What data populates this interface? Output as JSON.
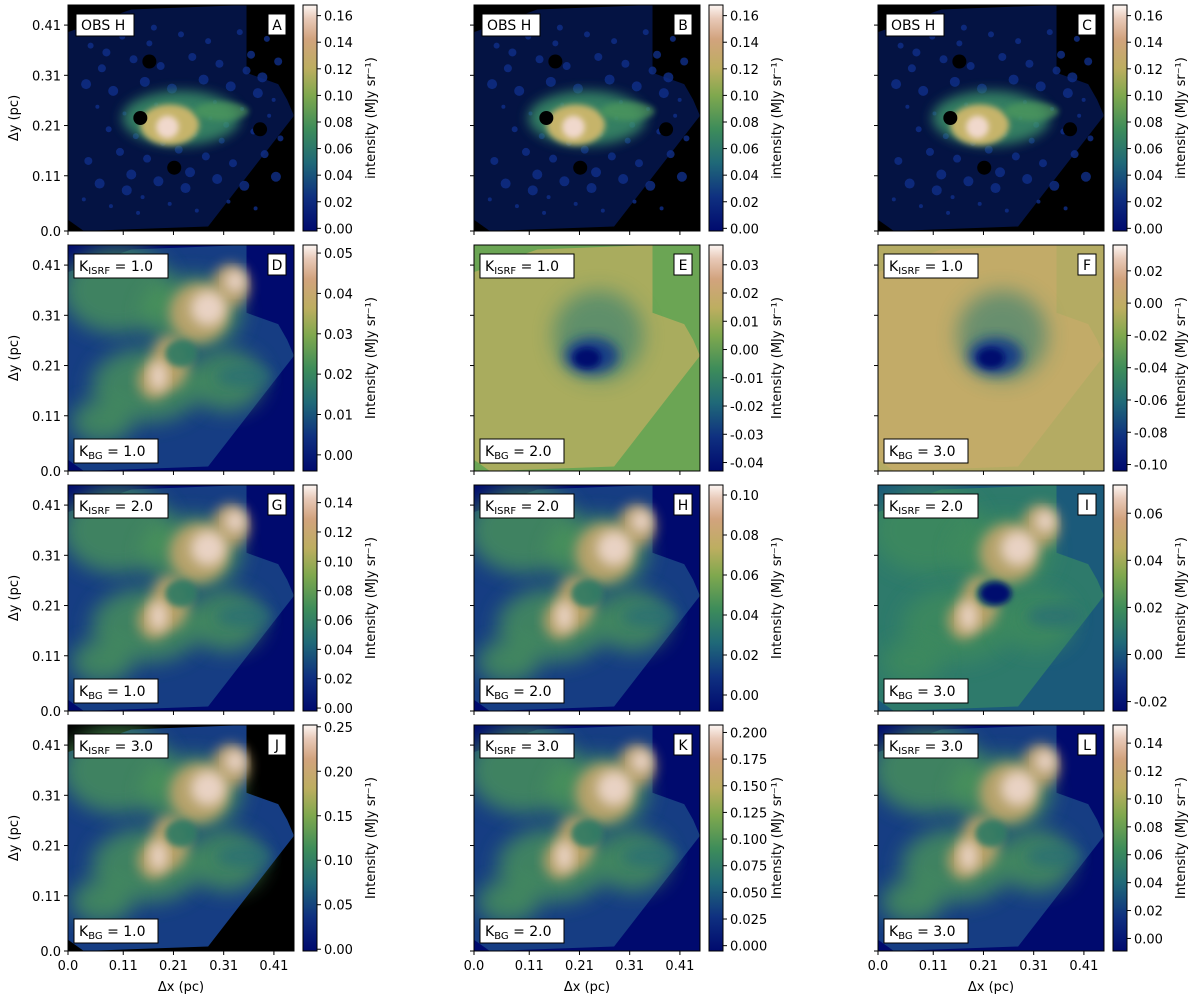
{
  "chart_data": {
    "type": "heatmap",
    "layout": "4x3 grid of image panels with colorbars",
    "shared_axes": {
      "xlabel": "Δx (pc)",
      "ylabel": "Δy (pc)",
      "xticks": [
        "0.0",
        "0.11",
        "0.21",
        "0.31",
        "0.41"
      ],
      "yticks": [
        "0.0",
        "0.11",
        "0.21",
        "0.31",
        "0.41"
      ],
      "xlim": [
        0,
        0.45
      ],
      "ylim": [
        0,
        0.45
      ]
    },
    "panels": [
      {
        "letter": "A",
        "tag": "OBS H",
        "cbar_label": "intensity (MJy sr⁻¹)",
        "cmap": "gist_earth",
        "kind": "obs",
        "ticks": [
          "0.00",
          "0.02",
          "0.04",
          "0.06",
          "0.08",
          "0.10",
          "0.12",
          "0.14",
          "0.16"
        ],
        "vmin": -0.002,
        "vmax": 0.168
      },
      {
        "letter": "B",
        "tag": "OBS H",
        "cbar_label": "intensity (MJy sr⁻¹)",
        "cmap": "gist_earth",
        "kind": "obs",
        "ticks": [
          "0.00",
          "0.02",
          "0.04",
          "0.06",
          "0.08",
          "0.10",
          "0.12",
          "0.14",
          "0.16"
        ],
        "vmin": -0.002,
        "vmax": 0.168
      },
      {
        "letter": "C",
        "tag": "OBS H",
        "cbar_label": "intensity (MJy sr⁻¹)",
        "cmap": "gist_earth",
        "kind": "obs",
        "ticks": [
          "0.00",
          "0.02",
          "0.04",
          "0.06",
          "0.08",
          "0.10",
          "0.12",
          "0.14",
          "0.16"
        ],
        "vmin": -0.002,
        "vmax": 0.168
      },
      {
        "letter": "D",
        "kisrf": "1.0",
        "kbg": "1.0",
        "cbar_label": "Intensity (MJy sr⁻¹)",
        "kind": "model",
        "ticks": [
          "0.00",
          "0.01",
          "0.02",
          "0.03",
          "0.04",
          "0.05"
        ],
        "vmin": -0.004,
        "vmax": 0.052
      },
      {
        "letter": "E",
        "kisrf": "1.0",
        "kbg": "2.0",
        "cbar_label": "Intensity (MJy sr⁻¹)",
        "kind": "hole",
        "ticks": [
          "-0.04",
          "-0.03",
          "-0.02",
          "-0.01",
          "0.00",
          "0.01",
          "0.02",
          "0.03"
        ],
        "vmin": -0.043,
        "vmax": 0.037
      },
      {
        "letter": "F",
        "kisrf": "1.0",
        "kbg": "3.0",
        "cbar_label": "Intensity (MJy sr⁻¹)",
        "kind": "hole",
        "ticks": [
          "-0.10",
          "-0.08",
          "-0.06",
          "-0.04",
          "-0.02",
          "0.00",
          "0.02"
        ],
        "vmin": -0.104,
        "vmax": 0.036
      },
      {
        "letter": "G",
        "kisrf": "2.0",
        "kbg": "1.0",
        "cbar_label": "Intensity (MJy sr⁻¹)",
        "kind": "model",
        "ticks": [
          "0.00",
          "0.02",
          "0.04",
          "0.06",
          "0.08",
          "0.10",
          "0.12",
          "0.14"
        ],
        "vmin": -0.002,
        "vmax": 0.152
      },
      {
        "letter": "H",
        "kisrf": "2.0",
        "kbg": "2.0",
        "cbar_label": "Intensity (MJy sr⁻¹)",
        "kind": "model",
        "ticks": [
          "0.00",
          "0.02",
          "0.04",
          "0.06",
          "0.08",
          "0.10"
        ],
        "vmin": -0.008,
        "vmax": 0.105
      },
      {
        "letter": "I",
        "kisrf": "2.0",
        "kbg": "3.0",
        "cbar_label": "Intensity (MJy sr⁻¹)",
        "kind": "mixed",
        "ticks": [
          "-0.02",
          "0.00",
          "0.02",
          "0.04",
          "0.06"
        ],
        "vmin": -0.024,
        "vmax": 0.072
      },
      {
        "letter": "J",
        "kisrf": "3.0",
        "kbg": "1.0",
        "cbar_label": "Intensity (MJy sr⁻¹)",
        "kind": "model_black",
        "ticks": [
          "0.00",
          "0.05",
          "0.10",
          "0.15",
          "0.20",
          "0.25"
        ],
        "vmin": -0.002,
        "vmax": 0.252
      },
      {
        "letter": "K",
        "kisrf": "3.0",
        "kbg": "2.0",
        "cbar_label": "Intensity (MJy sr⁻¹)",
        "kind": "model",
        "ticks": [
          "0.000",
          "0.025",
          "0.050",
          "0.075",
          "0.100",
          "0.125",
          "0.150",
          "0.175",
          "0.200"
        ],
        "vmin": -0.005,
        "vmax": 0.207
      },
      {
        "letter": "L",
        "kisrf": "3.0",
        "kbg": "3.0",
        "cbar_label": "Intensity (MJy sr⁻¹)",
        "kind": "model",
        "ticks": [
          "0.00",
          "0.02",
          "0.04",
          "0.06",
          "0.08",
          "0.10",
          "0.12",
          "0.14"
        ],
        "vmin": -0.009,
        "vmax": 0.153
      }
    ]
  }
}
